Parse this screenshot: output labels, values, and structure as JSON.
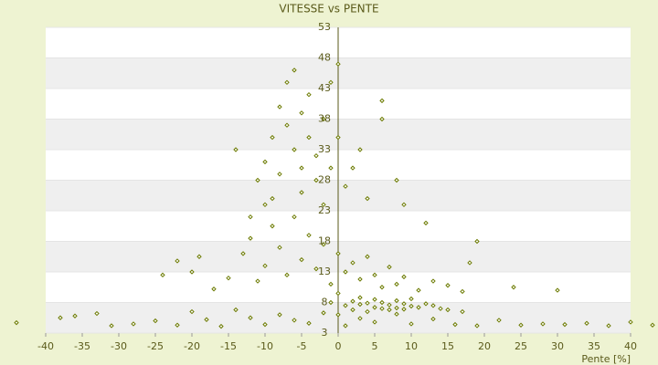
{
  "chart_data": {
    "type": "scatter",
    "title": "VITESSE vs PENTE",
    "x_label": "Pente [%]",
    "color": "#6b7a00",
    "grid": true,
    "xlim": [
      -40,
      40
    ],
    "xticks": [
      -40,
      -35,
      -30,
      -25,
      -20,
      -15,
      -10,
      -5,
      0,
      5,
      10,
      15,
      20,
      25,
      30,
      35,
      40
    ],
    "ylim": [
      3,
      53
    ],
    "yticks": [
      3,
      8,
      13,
      18,
      23,
      28,
      33,
      38,
      43,
      48,
      53
    ],
    "x": [
      -44,
      -38,
      -36,
      -33,
      -31,
      -28,
      -25,
      -22,
      -20,
      -18,
      -16,
      -14,
      -12,
      -10,
      -8,
      -6,
      -4,
      -2,
      1,
      3,
      5,
      8,
      10,
      13,
      16,
      19,
      22,
      25,
      28,
      31,
      34,
      37,
      40,
      43,
      -24,
      -22,
      -20,
      -19,
      -17,
      -15,
      -13,
      -12,
      -11,
      -10,
      -9,
      -8,
      -7,
      -6,
      -5,
      -4,
      -3,
      -2,
      -1,
      0,
      1,
      2,
      3,
      4,
      5,
      6,
      7,
      8,
      9,
      11,
      13,
      15,
      17,
      18,
      19,
      24,
      30,
      -14,
      -11,
      -10,
      -9,
      -9,
      -8,
      -8,
      -7,
      -7,
      -6,
      -6,
      -5,
      -5,
      -5,
      -4,
      -4,
      -3,
      -3,
      -2,
      -2,
      -1,
      -1,
      0,
      0,
      -12,
      -10,
      1,
      2,
      3,
      4,
      6,
      6,
      8,
      9,
      12,
      1,
      2,
      2,
      3,
      3,
      4,
      4,
      5,
      5,
      6,
      6,
      7,
      7,
      8,
      8,
      9,
      9,
      10,
      10,
      11,
      12,
      13,
      14,
      15,
      17,
      -1,
      0,
      0
    ],
    "values": [
      4.7,
      5.5,
      5.8,
      6.2,
      4.2,
      4.5,
      5.0,
      4.3,
      6.5,
      5.2,
      4.1,
      6.8,
      5.5,
      4.4,
      6.0,
      5.1,
      4.6,
      6.3,
      4.2,
      5.4,
      4.8,
      6.1,
      4.5,
      5.3,
      4.4,
      4.2,
      5.1,
      4.3,
      4.5,
      4.4,
      4.6,
      4.2,
      4.8,
      4.3,
      12.5,
      14.8,
      13.0,
      15.5,
      10.2,
      12.0,
      16.0,
      18.5,
      11.5,
      14.0,
      20.5,
      17.0,
      12.5,
      22.0,
      15.0,
      19.0,
      13.5,
      17.5,
      11.0,
      16.0,
      13.0,
      14.5,
      11.8,
      15.5,
      12.5,
      10.5,
      13.8,
      11.0,
      12.2,
      10.0,
      11.5,
      10.8,
      9.8,
      14.5,
      18.0,
      10.5,
      10.0,
      33,
      28,
      31,
      35,
      25,
      40,
      29,
      37,
      44,
      33,
      46,
      30,
      39,
      26,
      42,
      35,
      32,
      28,
      38,
      24,
      44,
      30,
      47,
      35,
      22,
      24,
      27,
      30,
      33,
      25,
      41,
      38,
      28,
      24,
      21,
      7.5,
      8.2,
      6.8,
      7.7,
      8.8,
      6.5,
      7.9,
      7.2,
      8.5,
      7.0,
      8.0,
      7.6,
      6.8,
      8.3,
      7.1,
      7.8,
      6.9,
      7.4,
      8.6,
      7.2,
      7.8,
      7.5,
      7.0,
      6.8,
      6.5,
      8.0,
      9.5,
      6.0
    ]
  }
}
